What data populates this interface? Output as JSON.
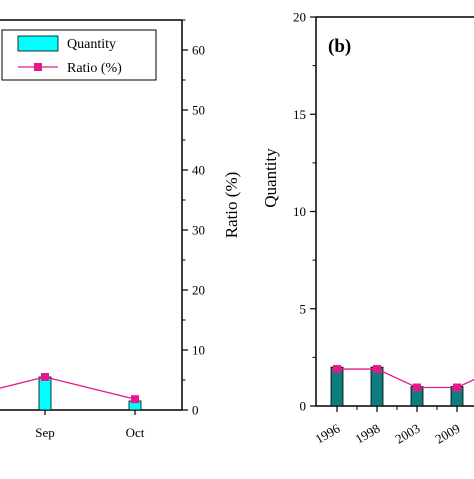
{
  "chart_data": [
    {
      "panel": "a",
      "type": "bar",
      "categories": [
        "Sep",
        "Oct"
      ],
      "series": [
        {
          "name": "Quantity",
          "type": "bar",
          "values": [
            5.5,
            1.5
          ],
          "color": "#00ffff"
        },
        {
          "name": "Ratio (%)",
          "type": "line",
          "values": [
            5.5,
            1.8
          ],
          "color": "#e8178a"
        }
      ],
      "left_edge_ratio_value": 3.5,
      "y2label": "Ratio (%)",
      "y2lim": [
        0,
        65
      ],
      "y2ticks": [
        "0",
        "10",
        "20",
        "30",
        "40",
        "50",
        "60"
      ],
      "legend": {
        "placement": "top-left"
      }
    },
    {
      "panel": "b",
      "tag": "(b)",
      "type": "bar",
      "categories": [
        "1996",
        "1998",
        "2003",
        "2009"
      ],
      "series": [
        {
          "name": "Quantity",
          "type": "bar",
          "values": [
            2,
            2,
            1,
            1
          ],
          "color": "#0d7d80"
        },
        {
          "name": "Ratio",
          "type": "line",
          "values": [
            1.9,
            1.9,
            0.95,
            0.95
          ],
          "color": "#e8178a"
        }
      ],
      "line_continues_up_to": 1.5,
      "ylabel": "Quantity",
      "ylim": [
        0,
        20
      ],
      "yticks": [
        "0",
        "5",
        "10",
        "15",
        "20"
      ]
    }
  ]
}
